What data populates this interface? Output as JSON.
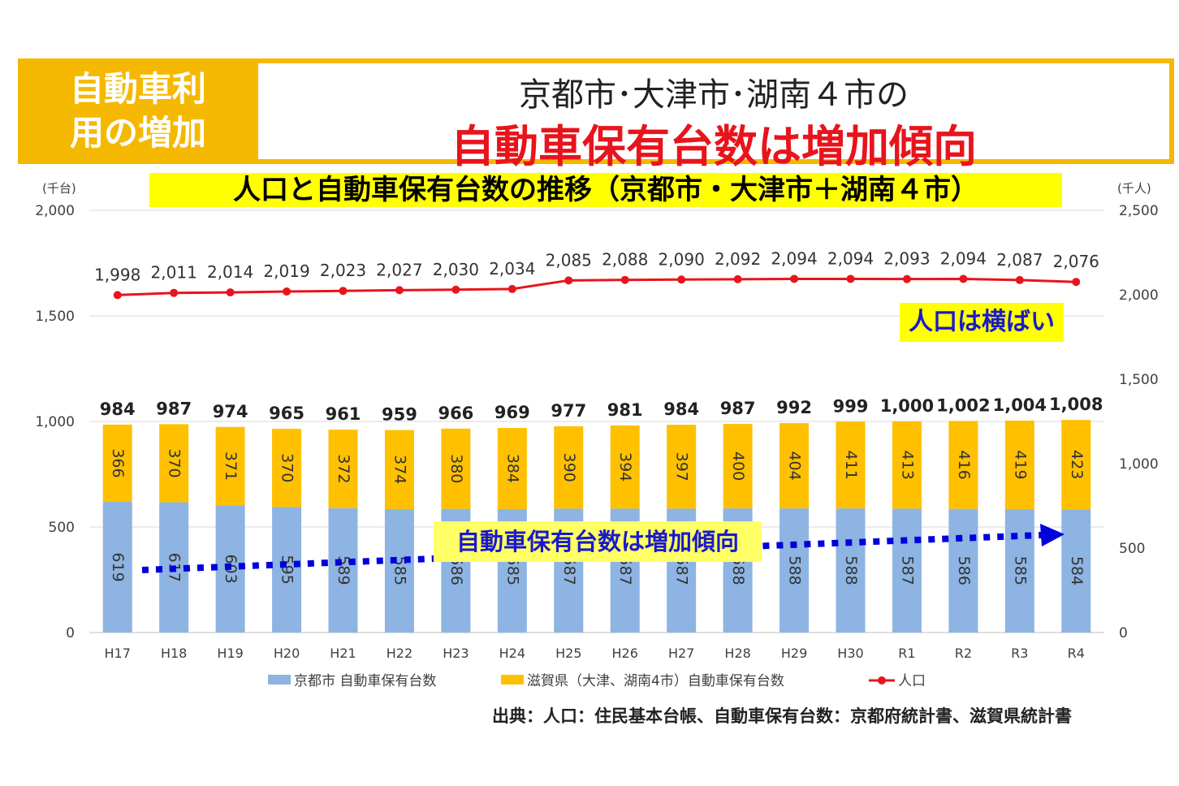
{
  "header": {
    "tag_line1": "自動車利",
    "tag_line2": "用の増加",
    "title_line1": "京都市･大津市･湖南４市の",
    "title_line2": "自動車保有台数は増加傾向"
  },
  "colors": {
    "accent_yellow": "#f5b800",
    "headline_red": "#e8141c",
    "kyoto_bar": "#8db4e2",
    "shiga_bar": "#ffc000",
    "population_line": "#e8141c",
    "trend_arrow": "#0000dd"
  },
  "chart_data": {
    "type": "bar",
    "title": "人口と自動車保有台数の推移（京都市・大津市＋湖南４市）",
    "left_unit": "(千台)",
    "right_unit": "(千人)",
    "categories": [
      "H17",
      "H18",
      "H19",
      "H20",
      "H21",
      "H22",
      "H23",
      "H24",
      "H25",
      "H26",
      "H27",
      "H28",
      "H29",
      "H30",
      "R1",
      "R2",
      "R3",
      "R4"
    ],
    "series": [
      {
        "name": "京都市 自動車保有台数",
        "kind": "stacked-bar",
        "axis": "left",
        "values": [
          619,
          617,
          603,
          595,
          589,
          585,
          586,
          585,
          587,
          587,
          587,
          588,
          588,
          588,
          587,
          586,
          585,
          584
        ]
      },
      {
        "name": "滋賀県（大津、湖南4市）自動車保有台数",
        "kind": "stacked-bar",
        "axis": "left",
        "values": [
          366,
          370,
          371,
          370,
          372,
          374,
          380,
          384,
          390,
          394,
          397,
          400,
          404,
          411,
          413,
          416,
          419,
          423
        ]
      },
      {
        "name": "人口",
        "kind": "line",
        "axis": "right",
        "values": [
          1998,
          2011,
          2014,
          2019,
          2023,
          2027,
          2030,
          2034,
          2085,
          2088,
          2090,
          2092,
          2094,
          2094,
          2093,
          2094,
          2087,
          2076
        ]
      }
    ],
    "totals": [
      "984",
      "987",
      "974",
      "965",
      "961",
      "959",
      "966",
      "969",
      "977",
      "981",
      "984",
      "987",
      "992",
      "999",
      "1,000",
      "1,002",
      "1,004",
      "1,008"
    ],
    "population_labels": [
      "1,998",
      "2,011",
      "2,014",
      "2,019",
      "2,023",
      "2,027",
      "2,030",
      "2,034",
      "2,085",
      "2,088",
      "2,090",
      "2,092",
      "2,094",
      "2,094",
      "2,093",
      "2,094",
      "2,087",
      "2,076"
    ],
    "left_ticks": [
      "0",
      "500",
      "1,000",
      "1,500",
      "2,000"
    ],
    "right_ticks": [
      "0",
      "500",
      "1,000",
      "1,500",
      "2,000",
      "2,500"
    ],
    "ylim_left": [
      0,
      2000
    ],
    "ylim_right": [
      0,
      2500
    ],
    "grid": true,
    "legend_position": "bottom",
    "annotations": {
      "population_note": "人口は横ばい",
      "trend_note": "自動車保有台数は増加傾向"
    }
  },
  "source_text": "出典：人口：住民基本台帳、自動車保有台数：京都府統計書、滋賀県統計書"
}
